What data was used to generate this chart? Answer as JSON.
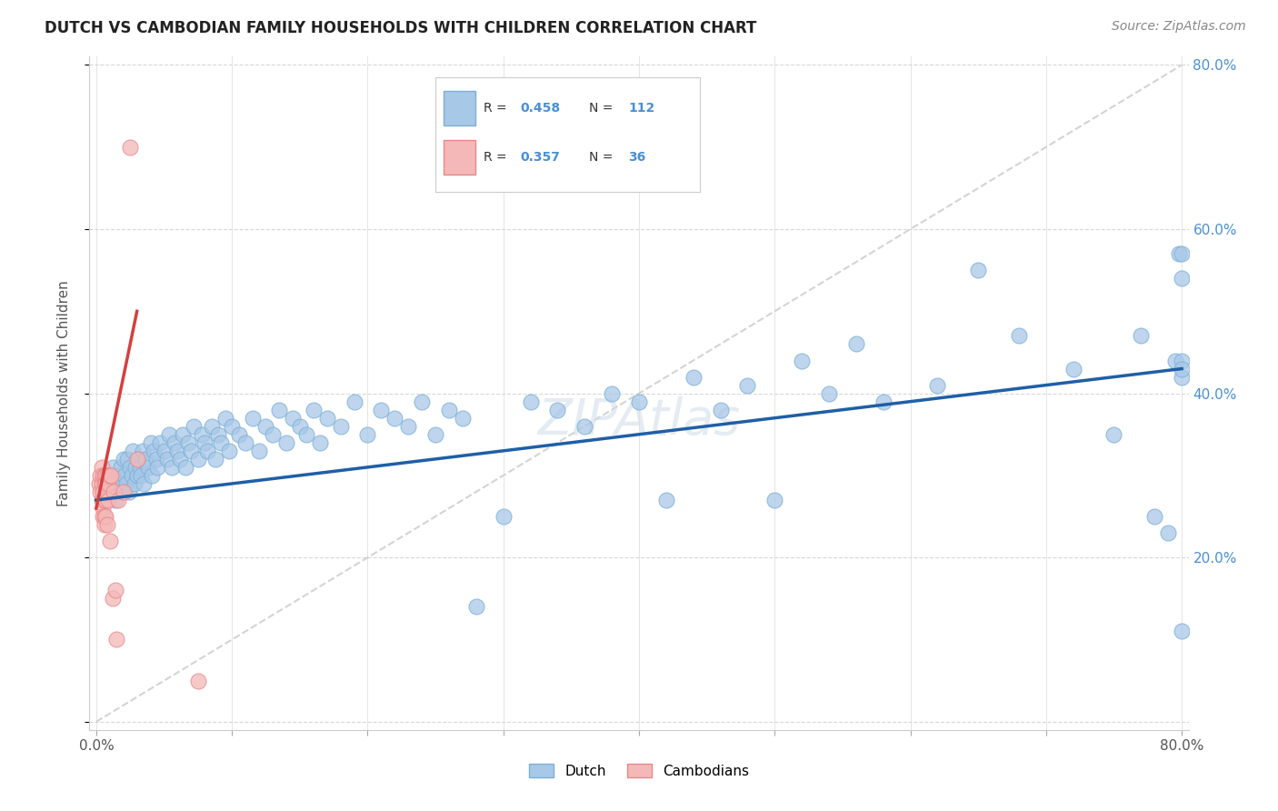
{
  "title": "DUTCH VS CAMBODIAN FAMILY HOUSEHOLDS WITH CHILDREN CORRELATION CHART",
  "source": "Source: ZipAtlas.com",
  "ylabel": "Family Households with Children",
  "watermark": "ZIPAtlas",
  "dutch_R": 0.458,
  "dutch_N": 112,
  "cambodian_R": 0.357,
  "cambodian_N": 36,
  "dutch_color": "#a8c8e8",
  "dutch_edge_color": "#7bafd4",
  "cambodian_color": "#f4b8b8",
  "cambodian_edge_color": "#e88888",
  "dutch_line_color": "#1f5fa6",
  "cambodian_line_color": "#d44040",
  "diagonal_color": "#d0d0d0",
  "dutch_x": [
    0.005,
    0.008,
    0.01,
    0.012,
    0.014,
    0.015,
    0.016,
    0.018,
    0.019,
    0.02,
    0.021,
    0.022,
    0.023,
    0.024,
    0.025,
    0.026,
    0.027,
    0.028,
    0.029,
    0.03,
    0.031,
    0.032,
    0.033,
    0.034,
    0.035,
    0.036,
    0.038,
    0.04,
    0.041,
    0.042,
    0.044,
    0.045,
    0.047,
    0.05,
    0.052,
    0.054,
    0.056,
    0.058,
    0.06,
    0.062,
    0.064,
    0.066,
    0.068,
    0.07,
    0.072,
    0.075,
    0.078,
    0.08,
    0.082,
    0.085,
    0.088,
    0.09,
    0.092,
    0.095,
    0.098,
    0.1,
    0.105,
    0.11,
    0.115,
    0.12,
    0.125,
    0.13,
    0.135,
    0.14,
    0.145,
    0.15,
    0.155,
    0.16,
    0.165,
    0.17,
    0.18,
    0.19,
    0.2,
    0.21,
    0.22,
    0.23,
    0.24,
    0.25,
    0.26,
    0.27,
    0.28,
    0.3,
    0.32,
    0.34,
    0.36,
    0.38,
    0.4,
    0.42,
    0.44,
    0.46,
    0.48,
    0.5,
    0.52,
    0.54,
    0.56,
    0.58,
    0.62,
    0.65,
    0.68,
    0.72,
    0.75,
    0.77,
    0.78,
    0.79,
    0.795,
    0.798,
    0.8,
    0.8,
    0.8,
    0.8,
    0.8,
    0.8
  ],
  "dutch_y": [
    0.28,
    0.3,
    0.29,
    0.31,
    0.27,
    0.3,
    0.29,
    0.31,
    0.28,
    0.32,
    0.3,
    0.29,
    0.32,
    0.28,
    0.31,
    0.3,
    0.33,
    0.29,
    0.31,
    0.3,
    0.32,
    0.31,
    0.3,
    0.33,
    0.29,
    0.32,
    0.31,
    0.34,
    0.3,
    0.33,
    0.32,
    0.31,
    0.34,
    0.33,
    0.32,
    0.35,
    0.31,
    0.34,
    0.33,
    0.32,
    0.35,
    0.31,
    0.34,
    0.33,
    0.36,
    0.32,
    0.35,
    0.34,
    0.33,
    0.36,
    0.32,
    0.35,
    0.34,
    0.37,
    0.33,
    0.36,
    0.35,
    0.34,
    0.37,
    0.33,
    0.36,
    0.35,
    0.38,
    0.34,
    0.37,
    0.36,
    0.35,
    0.38,
    0.34,
    0.37,
    0.36,
    0.39,
    0.35,
    0.38,
    0.37,
    0.36,
    0.39,
    0.35,
    0.38,
    0.37,
    0.14,
    0.25,
    0.39,
    0.38,
    0.36,
    0.4,
    0.39,
    0.27,
    0.42,
    0.38,
    0.41,
    0.27,
    0.44,
    0.4,
    0.46,
    0.39,
    0.41,
    0.55,
    0.47,
    0.43,
    0.35,
    0.47,
    0.25,
    0.23,
    0.44,
    0.57,
    0.42,
    0.54,
    0.11,
    0.44,
    0.43,
    0.57
  ],
  "cambodian_x": [
    0.002,
    0.003,
    0.003,
    0.004,
    0.004,
    0.004,
    0.005,
    0.005,
    0.005,
    0.005,
    0.006,
    0.006,
    0.006,
    0.006,
    0.006,
    0.007,
    0.007,
    0.007,
    0.007,
    0.008,
    0.008,
    0.008,
    0.009,
    0.009,
    0.01,
    0.01,
    0.011,
    0.012,
    0.013,
    0.014,
    0.015,
    0.016,
    0.02,
    0.025,
    0.03,
    0.075
  ],
  "cambodian_y": [
    0.29,
    0.3,
    0.28,
    0.31,
    0.29,
    0.27,
    0.3,
    0.28,
    0.26,
    0.25,
    0.3,
    0.29,
    0.27,
    0.25,
    0.24,
    0.3,
    0.29,
    0.27,
    0.25,
    0.3,
    0.28,
    0.24,
    0.29,
    0.27,
    0.3,
    0.22,
    0.3,
    0.15,
    0.28,
    0.16,
    0.1,
    0.27,
    0.28,
    0.7,
    0.32,
    0.05
  ],
  "dutch_line_x": [
    0.0,
    0.8
  ],
  "dutch_line_y": [
    0.27,
    0.43
  ],
  "cambodian_line_x": [
    0.0,
    0.03
  ],
  "cambodian_line_y": [
    0.26,
    0.5
  ],
  "xlim": [
    0.0,
    0.8
  ],
  "ylim": [
    0.0,
    0.8
  ],
  "xtick_positions": [
    0.0,
    0.1,
    0.2,
    0.3,
    0.4,
    0.5,
    0.6,
    0.7,
    0.8
  ],
  "ytick_positions": [
    0.0,
    0.2,
    0.4,
    0.6,
    0.8
  ],
  "right_ytick_labels": [
    "",
    "20.0%",
    "40.0%",
    "60.0%",
    "80.0%"
  ],
  "legend_r1": "R = 0.458",
  "legend_n1": "N = 112",
  "legend_r2": "R = 0.357",
  "legend_n2": "N = 36",
  "legend_dutch_label": "Dutch",
  "legend_cambodian_label": "Cambodians",
  "title_fontsize": 12,
  "source_fontsize": 10,
  "tick_fontsize": 11,
  "legend_fontsize": 11,
  "ylabel_fontsize": 11
}
